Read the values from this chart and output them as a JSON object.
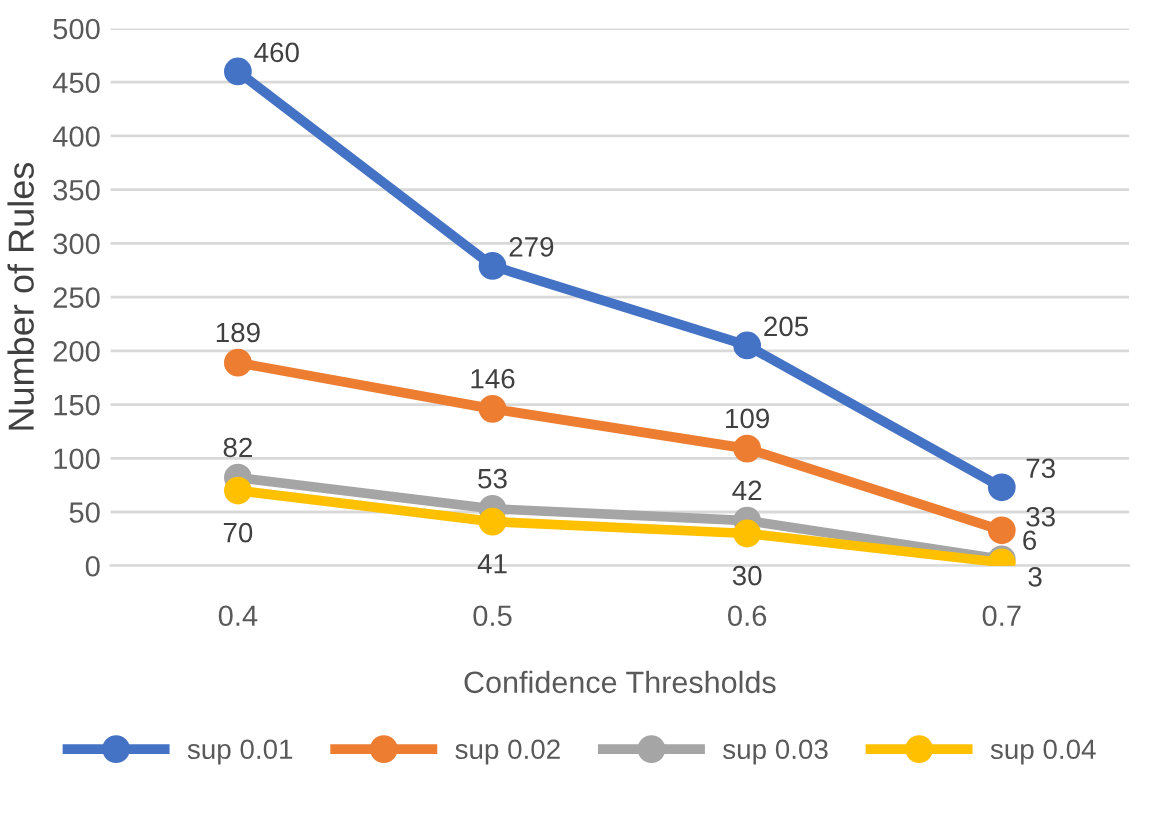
{
  "chart_data": {
    "type": "line",
    "xlabel": "Confidence Thresholds",
    "ylabel": "Number of Rules",
    "categories": [
      "0.4",
      "0.5",
      "0.6",
      "0.7"
    ],
    "series": [
      {
        "name": "sup 0.01",
        "color": "#4472c4",
        "values": [
          460,
          279,
          205,
          73
        ]
      },
      {
        "name": "sup 0.02",
        "color": "#ed7d31",
        "values": [
          189,
          146,
          109,
          33
        ]
      },
      {
        "name": "sup 0.03",
        "color": "#a5a5a5",
        "values": [
          82,
          53,
          42,
          6
        ]
      },
      {
        "name": "sup 0.04",
        "color": "#ffc000",
        "values": [
          70,
          41,
          30,
          3
        ]
      }
    ],
    "ylim": [
      0,
      500
    ],
    "yticks": [
      0,
      50,
      100,
      150,
      200,
      250,
      300,
      350,
      400,
      450,
      500
    ],
    "grid": "y",
    "legend": "bottom",
    "marker": "circle",
    "line_style": "solid",
    "data_labels": true
  }
}
